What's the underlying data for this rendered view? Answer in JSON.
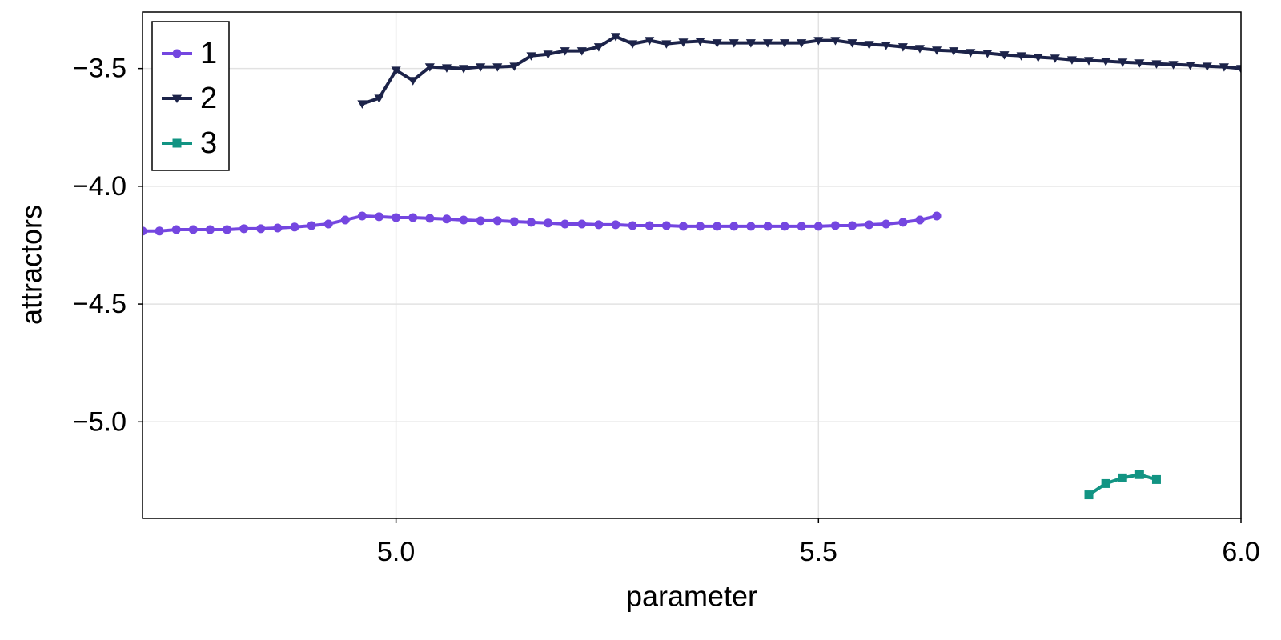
{
  "chart_data": {
    "type": "line",
    "xlabel": "parameter",
    "ylabel": "attractors",
    "xlim": [
      4.7,
      6.0
    ],
    "ylim": [
      -5.41,
      -3.26
    ],
    "xticks": [
      {
        "value": 5.0,
        "label": "5.0"
      },
      {
        "value": 5.5,
        "label": "5.5"
      },
      {
        "value": 6.0,
        "label": "6.0"
      }
    ],
    "yticks": [
      {
        "value": -3.5,
        "label": "−3.5"
      },
      {
        "value": -4.0,
        "label": "−4.0"
      },
      {
        "value": -4.5,
        "label": "−4.5"
      },
      {
        "value": -5.0,
        "label": "−5.0"
      }
    ],
    "grid": true,
    "legend": "top-left",
    "series": [
      {
        "name": "1",
        "color": "#7446e0",
        "marker": "circle",
        "x": [
          4.7,
          4.72,
          4.74,
          4.76,
          4.78,
          4.8,
          4.82,
          4.84,
          4.86,
          4.88,
          4.9,
          4.92,
          4.94,
          4.96,
          4.98,
          5.0,
          5.02,
          5.04,
          5.06,
          5.08,
          5.1,
          5.12,
          5.14,
          5.16,
          5.18,
          5.2,
          5.22,
          5.24,
          5.26,
          5.28,
          5.3,
          5.32,
          5.34,
          5.36,
          5.38,
          5.4,
          5.42,
          5.44,
          5.46,
          5.48,
          5.5,
          5.52,
          5.54,
          5.56,
          5.58,
          5.6,
          5.62,
          5.64
        ],
        "values": [
          -4.19,
          -4.19,
          -4.184,
          -4.184,
          -4.184,
          -4.184,
          -4.18,
          -4.18,
          -4.177,
          -4.173,
          -4.167,
          -4.16,
          -4.143,
          -4.126,
          -4.129,
          -4.133,
          -4.133,
          -4.136,
          -4.139,
          -4.143,
          -4.146,
          -4.146,
          -4.15,
          -4.153,
          -4.156,
          -4.16,
          -4.16,
          -4.163,
          -4.163,
          -4.167,
          -4.167,
          -4.167,
          -4.17,
          -4.17,
          -4.17,
          -4.17,
          -4.17,
          -4.17,
          -4.17,
          -4.17,
          -4.17,
          -4.167,
          -4.167,
          -4.163,
          -4.16,
          -4.153,
          -4.143,
          -4.126
        ]
      },
      {
        "name": "2",
        "color": "#1c2349",
        "marker": "triangle-down",
        "x": [
          4.96,
          4.98,
          5.0,
          5.02,
          5.04,
          5.06,
          5.08,
          5.1,
          5.12,
          5.14,
          5.16,
          5.18,
          5.2,
          5.22,
          5.24,
          5.26,
          5.28,
          5.3,
          5.32,
          5.34,
          5.36,
          5.38,
          5.4,
          5.42,
          5.44,
          5.46,
          5.48,
          5.5,
          5.52,
          5.54,
          5.56,
          5.58,
          5.6,
          5.62,
          5.64,
          5.66,
          5.68,
          5.7,
          5.72,
          5.74,
          5.76,
          5.78,
          5.8,
          5.82,
          5.84,
          5.86,
          5.88,
          5.9,
          5.92,
          5.94,
          5.96,
          5.98,
          6.0
        ],
        "values": [
          -3.65,
          -3.626,
          -3.507,
          -3.551,
          -3.493,
          -3.497,
          -3.5,
          -3.493,
          -3.493,
          -3.49,
          -3.446,
          -3.439,
          -3.425,
          -3.425,
          -3.408,
          -3.364,
          -3.395,
          -3.381,
          -3.395,
          -3.388,
          -3.384,
          -3.391,
          -3.391,
          -3.391,
          -3.391,
          -3.391,
          -3.391,
          -3.381,
          -3.381,
          -3.391,
          -3.398,
          -3.401,
          -3.408,
          -3.415,
          -3.422,
          -3.425,
          -3.432,
          -3.435,
          -3.442,
          -3.446,
          -3.452,
          -3.456,
          -3.463,
          -3.466,
          -3.469,
          -3.473,
          -3.476,
          -3.48,
          -3.483,
          -3.486,
          -3.49,
          -3.493,
          -3.5
        ]
      },
      {
        "name": "3",
        "color": "#129483",
        "marker": "square",
        "x": [
          5.82,
          5.84,
          5.86,
          5.88,
          5.9
        ],
        "values": [
          -5.31,
          -5.262,
          -5.238,
          -5.224,
          -5.245
        ]
      }
    ]
  }
}
